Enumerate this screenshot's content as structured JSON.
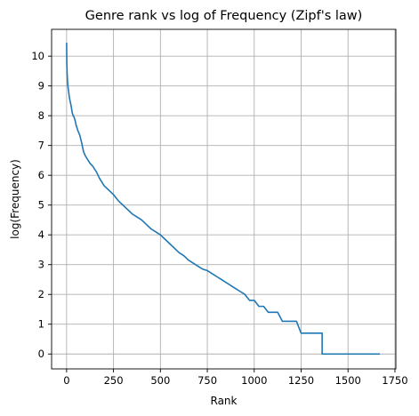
{
  "chart_data": {
    "type": "line",
    "title": "Genre rank vs log of Frequency (Zipf's law)",
    "xlabel": "Rank",
    "ylabel": "log(Frequency)",
    "xlim": [
      -80,
      1755
    ],
    "ylim": [
      -0.5,
      10.9
    ],
    "grid": true,
    "line_color": "#1f77b4",
    "grid_color": "#b0b0b0",
    "x_ticks": [
      0,
      250,
      500,
      750,
      1000,
      1250,
      1500,
      1750
    ],
    "y_ticks": [
      0,
      1,
      2,
      3,
      4,
      5,
      6,
      7,
      8,
      9,
      10
    ],
    "series": [
      {
        "x": [
          0,
          1,
          3,
          6,
          10,
          15,
          20,
          25,
          30,
          35,
          40,
          45,
          50,
          55,
          60,
          70,
          80,
          90,
          100,
          110,
          125,
          140,
          150,
          160,
          175,
          190,
          200,
          225,
          250,
          275,
          300,
          325,
          350,
          375,
          400,
          425,
          450,
          475,
          500,
          525,
          550,
          575,
          600,
          625,
          650,
          675,
          700,
          725,
          750,
          775,
          800,
          825,
          850,
          875,
          900,
          925,
          950,
          975,
          1000,
          1025,
          1050,
          1075,
          1100,
          1125,
          1150,
          1175,
          1200,
          1225,
          1250,
          1275,
          1300,
          1325,
          1350,
          1362,
          1362,
          1400,
          1450,
          1500,
          1550,
          1600,
          1650,
          1670
        ],
        "y": [
          10.45,
          9.8,
          9.4,
          9.05,
          8.85,
          8.6,
          8.45,
          8.3,
          8.1,
          8.0,
          7.95,
          7.85,
          7.7,
          7.6,
          7.5,
          7.35,
          7.1,
          6.8,
          6.65,
          6.55,
          6.4,
          6.3,
          6.2,
          6.1,
          5.9,
          5.75,
          5.65,
          5.5,
          5.35,
          5.15,
          5.0,
          4.85,
          4.7,
          4.6,
          4.5,
          4.35,
          4.2,
          4.1,
          4.0,
          3.85,
          3.7,
          3.55,
          3.4,
          3.3,
          3.15,
          3.05,
          2.95,
          2.85,
          2.8,
          2.7,
          2.6,
          2.5,
          2.4,
          2.3,
          2.2,
          2.1,
          2.0,
          1.8,
          1.8,
          1.6,
          1.6,
          1.4,
          1.4,
          1.4,
          1.1,
          1.1,
          1.1,
          1.1,
          0.7,
          0.7,
          0.7,
          0.7,
          0.7,
          0.7,
          0.0,
          0.0,
          0.0,
          0.0,
          0.0,
          0.0,
          0.0,
          0.0
        ]
      }
    ]
  }
}
